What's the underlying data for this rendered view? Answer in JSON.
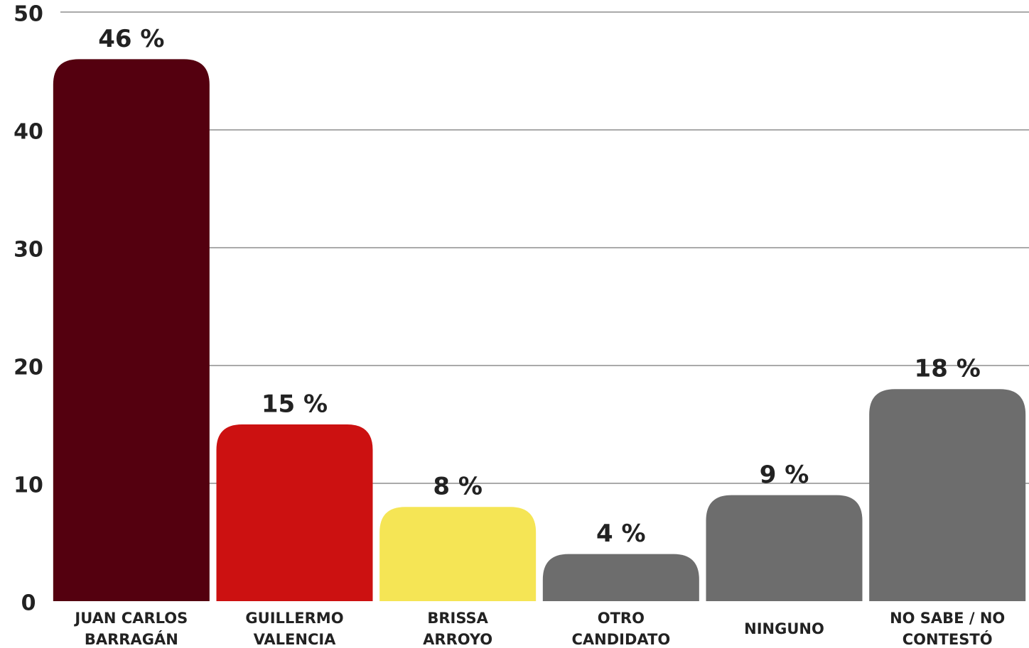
{
  "chart_data": {
    "type": "bar",
    "categories": [
      "JUAN CARLOS\nBARRAGÁN",
      "GUILLERMO\nVALENCIA",
      "BRISSA\nARROYO",
      "OTRO\nCANDIDATO",
      "NINGUNO",
      "NO SABE / NO\nCONTESTÓ"
    ],
    "values": [
      46,
      15,
      8,
      4,
      9,
      18
    ],
    "value_labels": [
      "46 %",
      "15 %",
      "8 %",
      "4 %",
      "9 %",
      "18 %"
    ],
    "colors": [
      "#54000f",
      "#cc1111",
      "#f5e555",
      "#6d6d6d",
      "#6d6d6d",
      "#6d6d6d"
    ],
    "ylim": [
      0,
      50
    ],
    "yticks": [
      0,
      10,
      20,
      30,
      40,
      50
    ],
    "grid": true
  }
}
